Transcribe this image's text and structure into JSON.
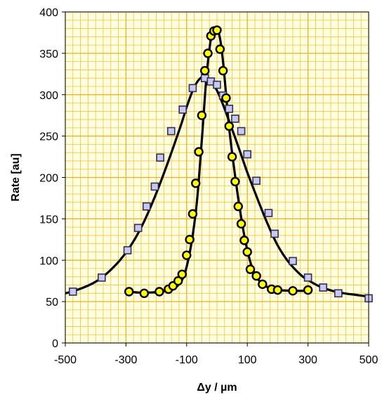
{
  "chart_data": {
    "type": "scatter",
    "title": "",
    "xlabel": "Δy / µm",
    "ylabel": "Rate [au]",
    "xlim": [
      -500,
      500
    ],
    "ylim": [
      0,
      400
    ],
    "x_major_ticks": [
      -500,
      -300,
      -100,
      100,
      300,
      500
    ],
    "y_major_ticks": [
      0,
      50,
      100,
      150,
      200,
      250,
      300,
      350,
      400
    ],
    "x_minor_step": 25,
    "y_minor_step": 10,
    "grid": true,
    "legend": "none",
    "colors": {
      "plot_bg": "#FFFFE0",
      "grid_minor": "#F5C040",
      "grid_major": "#E8B020",
      "square_fill": "#C8C8F0",
      "square_edge": "#303050",
      "circle_fill": "#FFFF00",
      "circle_edge": "#000000",
      "fit_line": "#000000"
    },
    "series": [
      {
        "marker": "square",
        "x": [
          -475,
          -380,
          -295,
          -260,
          -232,
          -205,
          -187,
          -151,
          -113,
          -80,
          -40,
          -20,
          0,
          20,
          40,
          60,
          80,
          100,
          130,
          170,
          190,
          250,
          300,
          350,
          400,
          500
        ],
        "y": [
          62,
          79,
          112,
          139,
          165,
          189,
          224,
          256,
          282,
          308,
          320,
          316,
          312,
          299,
          283,
          271,
          256,
          228,
          196,
          157,
          132,
          99,
          79,
          67,
          60,
          54
        ],
        "fit_x": [
          -520,
          -480,
          -440,
          -400,
          -360,
          -320,
          -280,
          -240,
          -200,
          -160,
          -120,
          -100,
          -80,
          -60,
          -40,
          -20,
          0,
          20,
          40,
          60,
          80,
          100,
          120,
          140,
          160,
          180,
          200,
          220,
          240,
          260,
          280,
          300,
          340,
          380,
          420,
          460,
          500
        ],
        "fit_y": [
          58,
          62,
          67,
          74,
          85,
          100,
          120,
          147,
          181,
          220,
          262,
          285,
          305,
          318,
          322,
          317,
          305,
          288,
          268,
          248,
          227,
          206,
          187,
          168,
          150,
          133,
          118,
          106,
          96,
          88,
          81,
          76,
          68,
          63,
          60,
          58,
          56
        ]
      },
      {
        "marker": "circle",
        "x": [
          -290,
          -240,
          -190,
          -160,
          -145,
          -128,
          -115,
          -100,
          -90,
          -80,
          -70,
          -60,
          -50,
          -40,
          -30,
          -20,
          -10,
          0,
          10,
          20,
          30,
          40,
          50,
          60,
          70,
          80,
          90,
          100,
          110,
          130,
          150,
          180,
          200,
          250,
          300
        ],
        "y": [
          62,
          60,
          62,
          65,
          69,
          75,
          83,
          106,
          125,
          156,
          193,
          231,
          275,
          329,
          350,
          371,
          377,
          378,
          355,
          329,
          296,
          262,
          225,
          195,
          165,
          144,
          124,
          110,
          89,
          81,
          71,
          65,
          64,
          63,
          64
        ],
        "fit_x": [
          -290,
          -260,
          -220,
          -180,
          -150,
          -130,
          -110,
          -95,
          -80,
          -65,
          -50,
          -35,
          -20,
          -10,
          0,
          10,
          20,
          30,
          40,
          55,
          70,
          85,
          100,
          115,
          130,
          150,
          170,
          200,
          250,
          300
        ],
        "fit_y": [
          62,
          61,
          61,
          62,
          65,
          69,
          80,
          100,
          130,
          175,
          245,
          320,
          368,
          378,
          379,
          368,
          340,
          300,
          260,
          215,
          175,
          140,
          112,
          92,
          80,
          71,
          67,
          64,
          63,
          63
        ]
      }
    ]
  }
}
